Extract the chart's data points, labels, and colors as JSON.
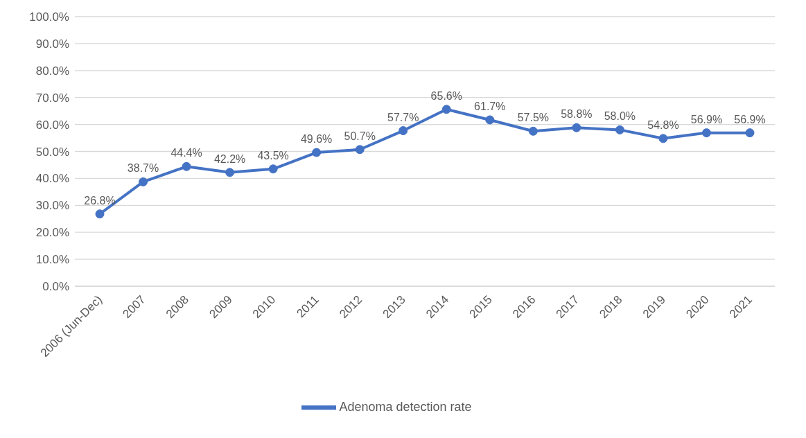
{
  "chart_data": {
    "type": "line",
    "categories": [
      "2006 (Jun-Dec)",
      "2007",
      "2008",
      "2009",
      "2010",
      "2011",
      "2012",
      "2013",
      "2014",
      "2015",
      "2016",
      "2017",
      "2018",
      "2019",
      "2020",
      "2021"
    ],
    "series": [
      {
        "name": "Adenoma detection rate",
        "color": "#4472c4",
        "values": [
          26.8,
          38.7,
          44.4,
          42.2,
          43.5,
          49.6,
          50.7,
          57.7,
          65.6,
          61.7,
          57.5,
          58.8,
          58.0,
          54.8,
          56.9,
          56.9
        ],
        "value_labels": [
          "26.8%",
          "38.7%",
          "44.4%",
          "42.2%",
          "43.5%",
          "49.6%",
          "50.7%",
          "57.7%",
          "65.6%",
          "61.7%",
          "57.5%",
          "58.8%",
          "58.0%",
          "54.8%",
          "56.9%",
          "56.9%"
        ]
      }
    ],
    "ylim": [
      0,
      100
    ],
    "yticks": [
      {
        "value": 0,
        "label": "0.0%"
      },
      {
        "value": 10,
        "label": "10.0%"
      },
      {
        "value": 20,
        "label": "20.0%"
      },
      {
        "value": 30,
        "label": "30.0%"
      },
      {
        "value": 40,
        "label": "40.0%"
      },
      {
        "value": 50,
        "label": "50.0%"
      },
      {
        "value": 60,
        "label": "60.0%"
      },
      {
        "value": 70,
        "label": "70.0%"
      },
      {
        "value": 80,
        "label": "80.0%"
      },
      {
        "value": 90,
        "label": "90.0%"
      },
      {
        "value": 100,
        "label": "100.0%"
      }
    ],
    "grid": "y",
    "legend": "bottom",
    "marker": "circle",
    "line_style": "solid"
  }
}
